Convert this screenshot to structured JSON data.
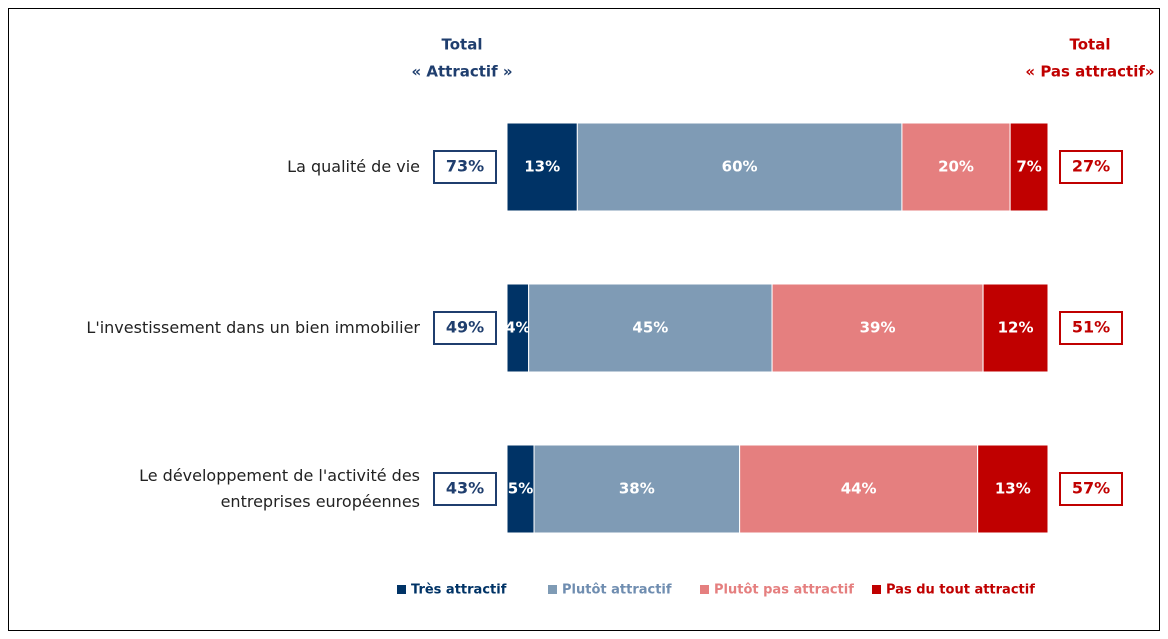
{
  "chart_data": {
    "type": "stacked_bar_horizontal",
    "categories": [
      "La qualité de vie",
      "L'investissement dans un bien immobilier",
      "Le développement de l'activité des\nentreprises européennes"
    ],
    "series": [
      {
        "name": "Très attractif",
        "color": "#003366",
        "values": [
          13,
          4,
          5
        ],
        "value_labels": [
          "13%",
          "4%",
          "5%"
        ]
      },
      {
        "name": "Plutôt attractif",
        "color": "#7f9bb5",
        "values": [
          60,
          45,
          38
        ],
        "value_labels": [
          "60%",
          "45%",
          "38%"
        ]
      },
      {
        "name": "Plutôt pas attractif",
        "color": "#e57f7f",
        "values": [
          20,
          39,
          44
        ],
        "value_labels": [
          "20%",
          "39%",
          "44%"
        ]
      },
      {
        "name": "Pas du tout attractif",
        "color": "#c00000",
        "values": [
          7,
          12,
          13
        ],
        "value_labels": [
          "7%",
          "12%",
          "13%"
        ]
      }
    ],
    "totals": [
      {
        "header": [
          "Total",
          "« Attractif »"
        ],
        "color": "#1f3e6e",
        "values": [
          73,
          49,
          43
        ],
        "value_labels": [
          "73%",
          "49%",
          "43%"
        ]
      },
      {
        "header": [
          "Total",
          "« Pas attractif»"
        ],
        "color": "#c00000",
        "values": [
          27,
          51,
          57
        ],
        "value_labels": [
          "27%",
          "51%",
          "57%"
        ]
      }
    ]
  }
}
